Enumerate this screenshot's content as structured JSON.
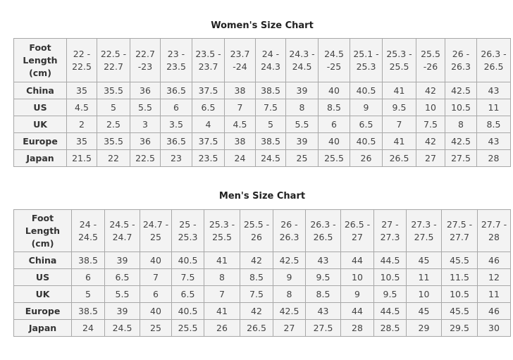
{
  "women": {
    "title": "Women's Size Chart",
    "header_label": "Foot\nLength\n(cm)",
    "foot_lengths": [
      "22 -\n22.5",
      "22.5 -\n22.7",
      "22.7\n-23",
      "23 -\n23.5",
      "23.5 -\n23.7",
      "23.7\n-24",
      "24 -\n24.3",
      "24.3 -\n24.5",
      "24.5\n-25",
      "25.1 -\n25.3",
      "25.3 -\n25.5",
      "25.5\n-26",
      "26 -\n26.3",
      "26.3 -\n26.5"
    ],
    "rows": [
      {
        "label": "China",
        "values": [
          "35",
          "35.5",
          "36",
          "36.5",
          "37.5",
          "38",
          "38.5",
          "39",
          "40",
          "40.5",
          "41",
          "42",
          "42.5",
          "43"
        ]
      },
      {
        "label": "US",
        "values": [
          "4.5",
          "5",
          "5.5",
          "6",
          "6.5",
          "7",
          "7.5",
          "8",
          "8.5",
          "9",
          "9.5",
          "10",
          "10.5",
          "11"
        ]
      },
      {
        "label": "UK",
        "values": [
          "2",
          "2.5",
          "3",
          "3.5",
          "4",
          "4.5",
          "5",
          "5.5",
          "6",
          "6.5",
          "7",
          "7.5",
          "8",
          "8.5"
        ]
      },
      {
        "label": "Europe",
        "values": [
          "35",
          "35.5",
          "36",
          "36.5",
          "37.5",
          "38",
          "38.5",
          "39",
          "40",
          "40.5",
          "41",
          "42",
          "42.5",
          "43"
        ]
      },
      {
        "label": "Japan",
        "values": [
          "21.5",
          "22",
          "22.5",
          "23",
          "23.5",
          "24",
          "24.5",
          "25",
          "25.5",
          "26",
          "26.5",
          "27",
          "27.5",
          "28"
        ]
      }
    ]
  },
  "men": {
    "title": "Men's Size Chart",
    "header_label": "Foot\nLength\n(cm)",
    "foot_lengths": [
      "24 -\n24.5",
      "24.5 -\n24.7",
      "24.7 -\n25",
      "25 -\n25.3",
      "25.3 -\n25.5",
      "25.5 -\n26",
      "26 -\n26.3",
      "26.3 -\n26.5",
      "26.5 -\n27",
      "27 -\n27.3",
      "27.3 -\n27.5",
      "27.5 -\n27.7",
      "27.7 -\n28"
    ],
    "rows": [
      {
        "label": "China",
        "values": [
          "38.5",
          "39",
          "40",
          "40.5",
          "41",
          "42",
          "42.5",
          "43",
          "44",
          "44.5",
          "45",
          "45.5",
          "46"
        ]
      },
      {
        "label": "US",
        "values": [
          "6",
          "6.5",
          "7",
          "7.5",
          "8",
          "8.5",
          "9",
          "9.5",
          "10",
          "10.5",
          "11",
          "11.5",
          "12"
        ]
      },
      {
        "label": "UK",
        "values": [
          "5",
          "5.5",
          "6",
          "6.5",
          "7",
          "7.5",
          "8",
          "8.5",
          "9",
          "9.5",
          "10",
          "10.5",
          "11"
        ]
      },
      {
        "label": "Europe",
        "values": [
          "38.5",
          "39",
          "40",
          "40.5",
          "41",
          "42",
          "42.5",
          "43",
          "44",
          "44.5",
          "45",
          "45.5",
          "46"
        ]
      },
      {
        "label": "Japan",
        "values": [
          "24",
          "24.5",
          "25",
          "25.5",
          "26",
          "26.5",
          "27",
          "27.5",
          "28",
          "28.5",
          "29",
          "29.5",
          "30"
        ]
      }
    ]
  }
}
